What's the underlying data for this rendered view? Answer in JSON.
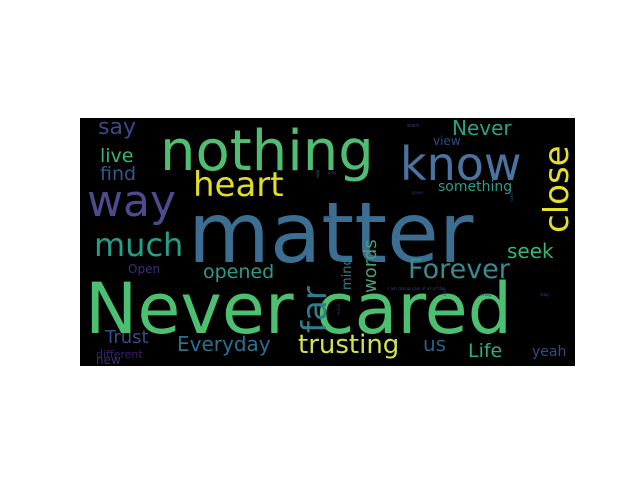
{
  "words": [
    {
      "text": "matter",
      "color": "#3b6e91"
    },
    {
      "text": "Never cared",
      "color": "#4cbf70"
    },
    {
      "text": "nothing",
      "color": "#4fbe73"
    },
    {
      "text": "know",
      "color": "#4a73a0"
    },
    {
      "text": "way",
      "color": "#4d4a8d"
    },
    {
      "text": "heart",
      "color": "#e2dd27"
    },
    {
      "text": "much",
      "color": "#23a085"
    },
    {
      "text": "close",
      "color": "#e5df2a"
    },
    {
      "text": "far",
      "color": "#2f7e8e"
    },
    {
      "text": "Forever",
      "color": "#3a8a91"
    },
    {
      "text": "trusting",
      "color": "#cfe34c"
    },
    {
      "text": "Everyday",
      "color": "#2d6f8e"
    },
    {
      "text": "Never",
      "color": "#2aa383"
    },
    {
      "text": "say",
      "color": "#394a86"
    },
    {
      "text": "live",
      "color": "#35b77a"
    },
    {
      "text": "find",
      "color": "#37568c"
    },
    {
      "text": "opened",
      "color": "#2b9c8a"
    },
    {
      "text": "words",
      "color": "#4a9f77"
    },
    {
      "text": "seek",
      "color": "#34b57a"
    },
    {
      "text": "Trust",
      "color": "#334f88"
    },
    {
      "text": "us",
      "color": "#2c5e8c"
    },
    {
      "text": "Life",
      "color": "#2ab07e"
    },
    {
      "text": "something",
      "color": "#2b9f8a"
    },
    {
      "text": "mind",
      "color": "#2c7a8d"
    },
    {
      "text": "yeah",
      "color": "#324a85"
    },
    {
      "text": "view",
      "color": "#2c4e84"
    },
    {
      "text": "Open",
      "color": "#3f2f78"
    },
    {
      "text": "new",
      "color": "#3c2e73"
    },
    {
      "text": "different",
      "color": "#3b2070"
    },
    {
      "text": "want",
      "color": "#3c3b7a"
    },
    {
      "text": "play",
      "color": "#4a3a86"
    },
    {
      "text": "green",
      "color": "#35396f"
    },
    {
      "text": "soul",
      "color": "#2b6d8a"
    },
    {
      "text": "road",
      "color": "#2b4f82"
    },
    {
      "text": "reach",
      "color": "#39326e"
    },
    {
      "text": "I am taking care of all of this",
      "color": "#3e3c7e"
    },
    {
      "text": "living",
      "color": "#3b2e78"
    },
    {
      "text": "stay",
      "color": "#2c4c87"
    },
    {
      "text": "lost",
      "color": "#463582"
    },
    {
      "text": "one",
      "color": "#353a80"
    }
  ]
}
